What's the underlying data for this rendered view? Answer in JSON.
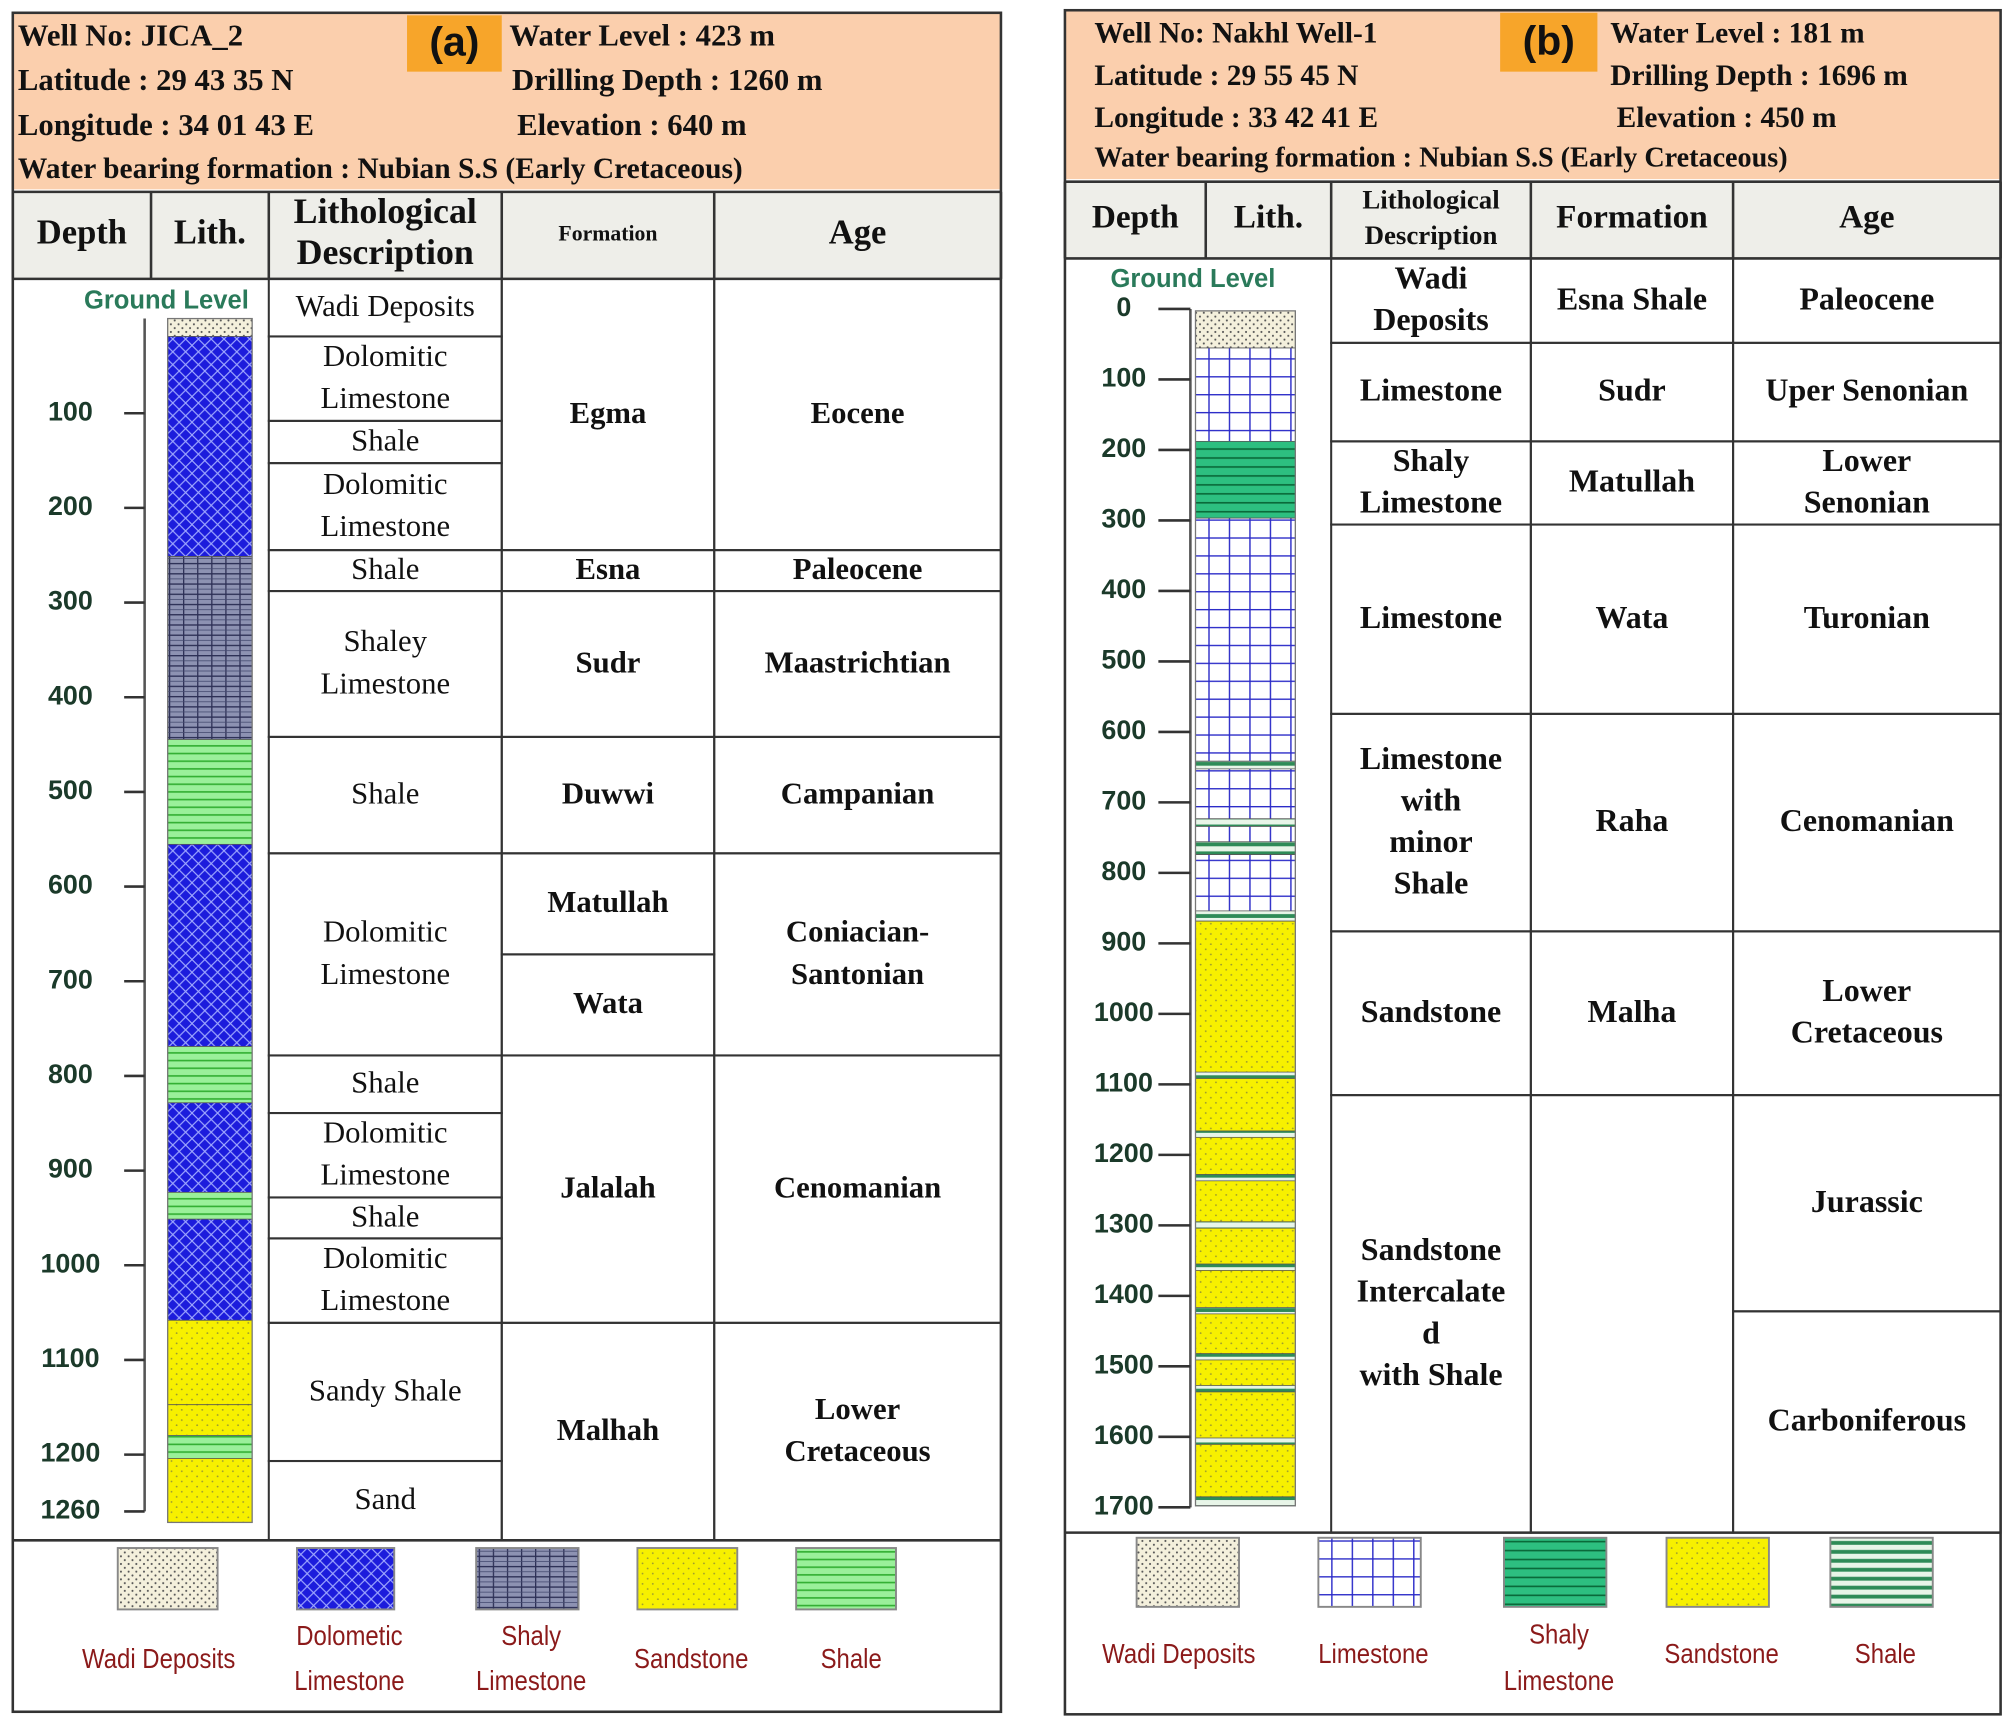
{
  "panels": [
    {
      "label": "(a)",
      "header": {
        "well_no": "Well No: JICA_2",
        "water_level": "Water Level : 423 m",
        "latitude": "Latitude : 29 43 35 N",
        "drilling_depth": "Drilling Depth : 1260 m",
        "longitude": "Longitude : 34 01 43 E",
        "elevation": "Elevation : 640 m",
        "water_bearing": "Water  bearing formation : Nubian S.S (Early Cretaceous)"
      },
      "columns": [
        [
          "Depth"
        ],
        [
          "Lith."
        ],
        [
          "Lithological",
          "Description"
        ],
        [
          "Formation"
        ],
        [
          "Age"
        ]
      ],
      "ground_level": "Ground Level",
      "depth_ticks": [
        100,
        200,
        300,
        400,
        500,
        600,
        700,
        800,
        900,
        1000,
        1100,
        1200,
        1260
      ],
      "description": [
        [
          "Wadi Deposits"
        ],
        [
          "Dolomitic",
          "Limestone"
        ],
        [
          "Shale"
        ],
        [
          "Dolomitic",
          "Limestone"
        ],
        [
          "Shale"
        ],
        [
          "Shaley",
          "Limestone"
        ],
        [
          "Shale"
        ],
        [
          "Dolomitic",
          "Limestone"
        ],
        [
          "Shale"
        ],
        [
          "Dolomitic",
          "Limestone"
        ],
        [
          "Shale"
        ],
        [
          "Dolomitic",
          "Limestone"
        ],
        [
          "Sandy Shale"
        ],
        [
          "Sand"
        ]
      ],
      "formation": [
        [
          "Egma"
        ],
        [
          "Esna"
        ],
        [
          "Sudr"
        ],
        [
          "Duwwi"
        ],
        [
          "Matullah"
        ],
        [
          "Wata"
        ],
        [
          "Jalalah"
        ],
        [
          "Malhah"
        ]
      ],
      "age": [
        [
          "Eocene"
        ],
        [
          "Paleocene"
        ],
        [
          "Maastrichtian"
        ],
        [
          "Campanian"
        ],
        [
          "Coniacian-",
          "Santonian"
        ],
        [
          "Cenomanian"
        ],
        [
          "Lower",
          "Cretaceous"
        ]
      ],
      "legend": [
        [
          "Wadi Deposits"
        ],
        [
          "Dolometic",
          "Limestone"
        ],
        [
          "Shaly",
          "Limestone"
        ],
        [
          "Sandstone"
        ],
        [
          "Shale"
        ]
      ]
    },
    {
      "label": "(b)",
      "header": {
        "well_no": "Well No: Nakhl Well-1",
        "water_level": "Water Level : 181 m",
        "latitude": "Latitude : 29 55 45 N",
        "drilling_depth": "Drilling Depth : 1696 m",
        "longitude": "Longitude : 33 42 41 E",
        "elevation": "Elevation : 450 m",
        "water_bearing": "Water  bearing formation : Nubian S.S (Early Cretaceous)"
      },
      "columns": [
        [
          "Depth"
        ],
        [
          "Lith."
        ],
        [
          "Lithological",
          "Description"
        ],
        [
          "Formation"
        ],
        [
          "Age"
        ]
      ],
      "ground_level": "Ground Level",
      "depth_ticks": [
        0,
        100,
        200,
        300,
        400,
        500,
        600,
        700,
        800,
        900,
        1000,
        1100,
        1200,
        1300,
        1400,
        1500,
        1600,
        1700
      ],
      "description": [
        [
          "Wadi",
          "Deposits"
        ],
        [
          "Limestone"
        ],
        [
          "Shaly",
          "Limestone"
        ],
        [
          "Limestone"
        ],
        [
          "Limestone",
          "with",
          "minor",
          "Shale"
        ],
        [
          "Sandstone"
        ],
        [
          "Sandstone",
          "Intercalate",
          "d",
          "with Shale"
        ]
      ],
      "formation": [
        [
          "Esna Shale"
        ],
        [
          "Sudr"
        ],
        [
          "Matullah"
        ],
        [
          "Wata"
        ],
        [
          "Raha"
        ],
        [
          "Malha"
        ]
      ],
      "age": [
        [
          "Paleocene"
        ],
        [
          "Uper Senonian"
        ],
        [
          "Lower",
          "Senonian"
        ],
        [
          "Turonian"
        ],
        [
          "Cenomanian"
        ],
        [
          "Lower",
          "Cretaceous"
        ],
        [
          "Jurassic"
        ],
        [
          "Carboniferous"
        ]
      ],
      "legend": [
        [
          "Wadi Deposits"
        ],
        [
          "Limestone"
        ],
        [
          "Shaly",
          "Limestone"
        ],
        [
          "Sandstone"
        ],
        [
          "Shale"
        ]
      ]
    }
  ]
}
